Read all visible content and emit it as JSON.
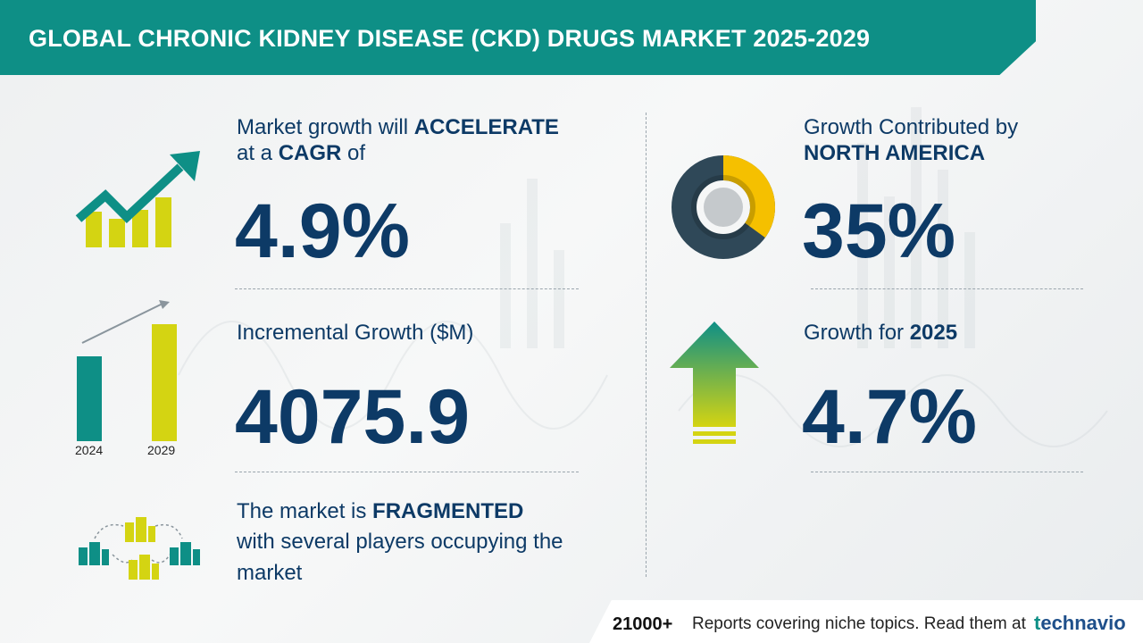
{
  "header": {
    "title": "GLOBAL CHRONIC KIDNEY DISEASE (CKD) DRUGS MARKET 2025-2029"
  },
  "cagr": {
    "line1_prefix": "Market growth will ",
    "line1_bold": "ACCELERATE",
    "line2_prefix": "at a ",
    "line2_bold": "CAGR",
    "line2_suffix": " of",
    "value": "4.9%"
  },
  "incremental": {
    "label": "Incremental Growth ($M)",
    "value": "4075.9",
    "years": [
      "2024",
      "2029"
    ]
  },
  "fragmented": {
    "line1_prefix": "The market is ",
    "line1_bold": "FRAGMENTED",
    "line2": "with several players occupying the",
    "line3": "market"
  },
  "region": {
    "line1": "Growth Contributed by",
    "line2_bold": "NORTH AMERICA",
    "value": "35%",
    "share": 0.35
  },
  "growth_year": {
    "label_prefix": "Growth for ",
    "label_bold": "2025",
    "value": "4.7%"
  },
  "footer": {
    "count": "21000+",
    "text": "Reports covering niche topics. Read them at",
    "brand_prefix": "t",
    "brand_rest": "echnavio"
  },
  "colors": {
    "teal": "#0e8f86",
    "navy": "#0d3a66",
    "yellow": "#d4d412",
    "gold": "#f5c000",
    "slate": "#2f4858"
  }
}
